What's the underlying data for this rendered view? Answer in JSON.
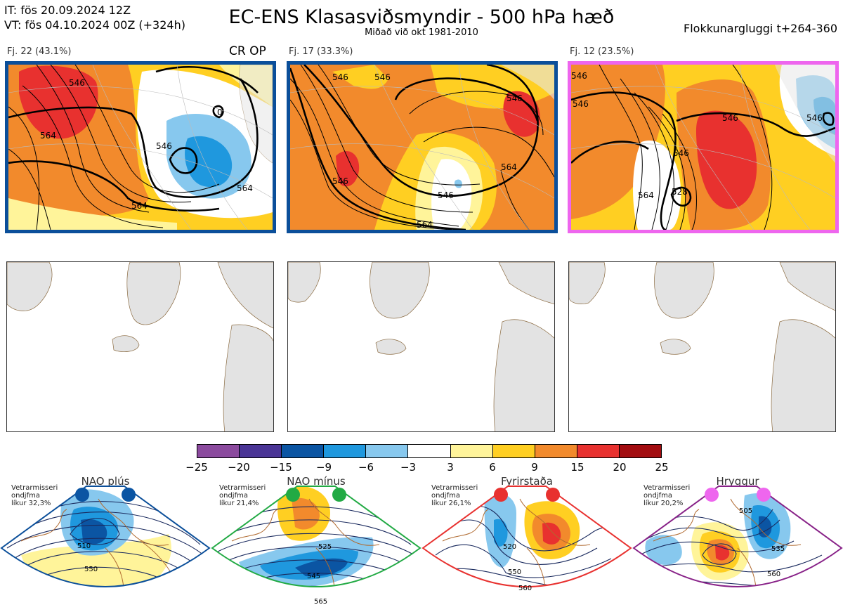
{
  "header": {
    "init_line": "IT: fös 20.09.2024 12Z",
    "valid_line": "VT: fös 04.10.2024 00Z  (+324h)",
    "title": "EC-ENS Klasasviðsmyndir - 500 hPa hæð",
    "subtitle": "Miðað við okt 1981-2010",
    "window": "Flokkunargluggi t+264-360"
  },
  "clusters": [
    {
      "label": "Fj. 22 (43.1%)",
      "op_label": "CR OP",
      "border_color": "#0b4f9a",
      "contours": [
        "546",
        "564",
        "564",
        "546",
        "564",
        "0"
      ]
    },
    {
      "label": "Fj. 17 (33.3%)",
      "op_label": "",
      "border_color": "#0b4f9a",
      "contours": [
        "546",
        "546",
        "546",
        "546",
        "564",
        "564",
        "546"
      ]
    },
    {
      "label": "Fj. 12 (23.5%)",
      "op_label": "",
      "border_color": "#ee66ee",
      "contours": [
        "546",
        "546",
        "528",
        "564",
        "546",
        "546",
        "546"
      ]
    }
  ],
  "colorbar": {
    "colors": [
      "#8b4a9e",
      "#4a3596",
      "#0b55a3",
      "#1f98de",
      "#87c8ee",
      "#ffffff",
      "#fff49a",
      "#ffcf22",
      "#f28a2c",
      "#e8312f",
      "#a30d11"
    ],
    "ticks": [
      "−25",
      "−20",
      "−15",
      "−9",
      "−6",
      "−3",
      "3",
      "6",
      "9",
      "15",
      "20",
      "25"
    ]
  },
  "regimes": [
    {
      "name": "NAO plús",
      "note": "Vetrarmisseri\nondjfma\nlíkur 32,3%",
      "dot_color": "#0b55a3",
      "frame_color": "#0b4f9a",
      "contours": [
        "510",
        "550"
      ]
    },
    {
      "name": "NAO mínus",
      "note": "Vetrarmisseri\nondjfma\nlíkur 21,4%",
      "dot_color": "#22aa44",
      "frame_color": "#22aa44",
      "contours": [
        "525",
        "545",
        "565"
      ]
    },
    {
      "name": "Fyrirstaða",
      "note": "Vetrarmisseri\nondjfma\nlíkur 26,1%",
      "dot_color": "#e8312f",
      "frame_color": "#e8312f",
      "contours": [
        "520",
        "550",
        "560"
      ]
    },
    {
      "name": "Hryggur",
      "note": "Vetrarmisseri\nondjfma\nlíkur 20,2%",
      "dot_color": "#ee66ee",
      "frame_color": "#882288",
      "contours": [
        "505",
        "535",
        "560"
      ]
    }
  ]
}
